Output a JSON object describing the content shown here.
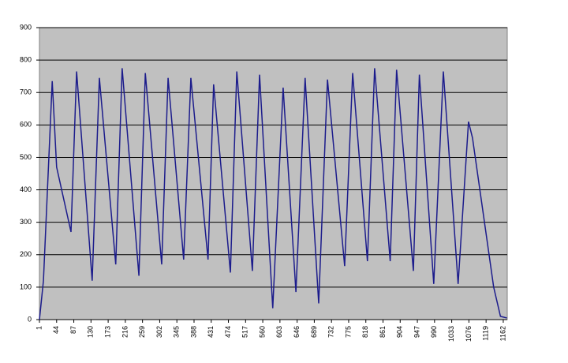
{
  "chart_data": {
    "type": "line",
    "x": [
      1,
      11,
      33,
      44,
      80,
      94,
      133,
      151,
      192,
      208,
      250,
      266,
      307,
      323,
      362,
      380,
      423,
      437,
      479,
      495,
      534,
      552,
      585,
      611,
      643,
      666,
      700,
      722,
      765,
      785,
      822,
      840,
      879,
      895,
      937,
      952,
      988,
      1012,
      1049,
      1075,
      1085,
      1138,
      1155,
      1171
    ],
    "series": [
      {
        "color": "#1c1c8c",
        "values": [
          0,
          120,
          735,
          470,
          270,
          765,
          120,
          745,
          170,
          775,
          135,
          760,
          170,
          745,
          185,
          745,
          185,
          725,
          145,
          765,
          150,
          755,
          35,
          715,
          85,
          745,
          50,
          740,
          165,
          760,
          180,
          775,
          180,
          770,
          150,
          755,
          110,
          765,
          110,
          610,
          560,
          100,
          10,
          5
        ]
      }
    ],
    "xlim": [
      1,
      1172
    ],
    "xticks": [
      1,
      44,
      87,
      130,
      173,
      216,
      259,
      302,
      345,
      388,
      431,
      474,
      517,
      560,
      603,
      646,
      689,
      732,
      775,
      818,
      861,
      904,
      947,
      990,
      1033,
      1076,
      1119,
      1162
    ],
    "ylim": [
      0,
      900
    ],
    "yticks": [
      0,
      100,
      200,
      300,
      400,
      500,
      600,
      700,
      800,
      900
    ],
    "grid": true,
    "plot_color": "#c0c0c0"
  }
}
